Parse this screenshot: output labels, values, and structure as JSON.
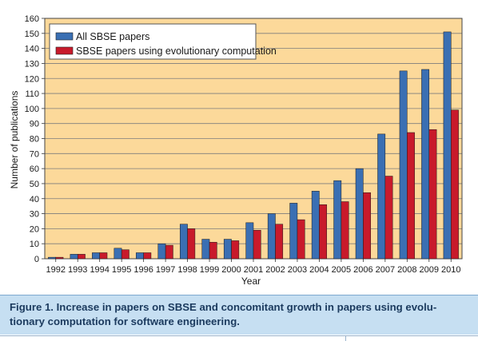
{
  "caption": {
    "label": "Figure 1.",
    "text": "Increase in papers on SBSE and concomitant growth in papers using evolu- tionary computation for software engineering."
  },
  "colors": {
    "plot_background": "#fcd99a",
    "panel_background": "#ffffff",
    "caption_background": "#c6dff2",
    "caption_text": "#1b3a5e",
    "series_all": "#3a6fb3",
    "series_ec": "#c81a2b",
    "gridline": "#7d7d7d"
  },
  "chart_data": {
    "type": "bar",
    "title": "",
    "xlabel": "Year",
    "ylabel": "Number of publications",
    "ylim": [
      0,
      160
    ],
    "ytick_step": 10,
    "grid": true,
    "legend_position": "top-left",
    "categories": [
      "1992",
      "1993",
      "1994",
      "1995",
      "1996",
      "1997",
      "1998",
      "1999",
      "2000",
      "2001",
      "2002",
      "2003",
      "2004",
      "2005",
      "2006",
      "2007",
      "2008",
      "2009",
      "2010"
    ],
    "series": [
      {
        "name": "All SBSE papers",
        "color": "#3a6fb3",
        "values": [
          1,
          3,
          4,
          7,
          4,
          10,
          23,
          13,
          13,
          24,
          30,
          37,
          45,
          52,
          60,
          83,
          125,
          126,
          151
        ]
      },
      {
        "name": "SBSE papers using evolutionary computation",
        "color": "#c81a2b",
        "values": [
          1,
          3,
          4,
          6,
          4,
          9,
          20,
          11,
          12,
          19,
          23,
          26,
          36,
          38,
          44,
          55,
          84,
          86,
          99
        ]
      }
    ]
  }
}
